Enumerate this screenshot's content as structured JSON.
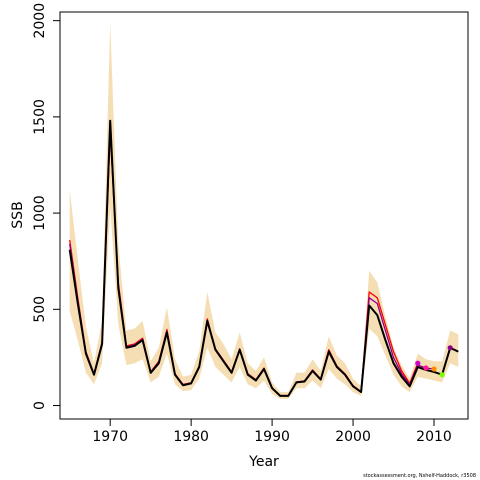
{
  "chart_data": {
    "type": "line",
    "xlabel": "Year",
    "ylabel": "SSB",
    "xlim": [
      1963.8,
      2014.2
    ],
    "ylim": [
      -70,
      2045
    ],
    "xticks": [
      1970,
      1980,
      1990,
      2000,
      2010
    ],
    "yticks": [
      0,
      500,
      1000,
      1500,
      2000
    ],
    "grid": false,
    "caption": "stockassessment.org, Nshelf-Haddock, r3508",
    "colors": {
      "band": "#f5deb3",
      "main": "#000000",
      "retro_red": "#ff0000",
      "retro_purple": "#8b008b",
      "points": [
        "#cd00cd",
        "#ff1493",
        "#ff8c00",
        "#7cfc00",
        "#8b008b"
      ]
    },
    "series": [
      {
        "id": "estimate",
        "x": [
          1965,
          1966,
          1967,
          1968,
          1969,
          1970,
          1971,
          1972,
          1973,
          1974,
          1975,
          1976,
          1977,
          1978,
          1979,
          1980,
          1981,
          1982,
          1983,
          1984,
          1985,
          1986,
          1987,
          1988,
          1989,
          1990,
          1991,
          1992,
          1993,
          1994,
          1995,
          1996,
          1997,
          1998,
          1999,
          2000,
          2001,
          2002,
          2003,
          2004,
          2005,
          2006,
          2007,
          2008,
          2009,
          2010,
          2011,
          2012,
          2013
        ],
        "y": [
          810,
          530,
          270,
          160,
          320,
          1480,
          610,
          300,
          310,
          340,
          170,
          220,
          380,
          160,
          105,
          115,
          200,
          440,
          290,
          230,
          170,
          290,
          160,
          130,
          190,
          90,
          50,
          50,
          120,
          125,
          180,
          135,
          280,
          200,
          160,
          100,
          70,
          520,
          470,
          340,
          220,
          150,
          100,
          200,
          185,
          175,
          160,
          300,
          280
        ],
        "upper": [
          1120,
          760,
          410,
          220,
          440,
          1990,
          840,
          390,
          400,
          440,
          230,
          300,
          510,
          240,
          150,
          160,
          280,
          590,
          380,
          320,
          240,
          380,
          220,
          180,
          250,
          120,
          70,
          70,
          170,
          170,
          240,
          180,
          360,
          260,
          220,
          140,
          100,
          700,
          640,
          460,
          300,
          210,
          140,
          270,
          240,
          230,
          230,
          390,
          370
        ],
        "lower": [
          490,
          340,
          170,
          110,
          220,
          1030,
          420,
          210,
          220,
          240,
          120,
          150,
          270,
          110,
          75,
          80,
          140,
          300,
          200,
          160,
          120,
          200,
          110,
          90,
          130,
          60,
          35,
          35,
          90,
          90,
          130,
          90,
          190,
          140,
          110,
          70,
          50,
          400,
          360,
          260,
          160,
          100,
          70,
          150,
          140,
          130,
          120,
          220,
          200
        ]
      },
      {
        "id": "retro-1",
        "x": [
          1965,
          1966,
          1967,
          1968,
          1969,
          1970,
          1971,
          1972,
          1973,
          1974,
          1975,
          1976,
          1977,
          1978,
          1979,
          1980,
          1981,
          1982,
          1983,
          1984,
          1985,
          1986,
          1987,
          1988,
          1989,
          1990,
          1991,
          1992,
          1993,
          1994,
          1995,
          1996,
          1997,
          1998,
          1999,
          2000,
          2001,
          2002,
          2003,
          2004,
          2005,
          2006,
          2007,
          2008
        ],
        "y": [
          860,
          560,
          280,
          165,
          330,
          1420,
          640,
          310,
          320,
          350,
          175,
          230,
          395,
          165,
          110,
          118,
          205,
          450,
          295,
          235,
          175,
          295,
          165,
          135,
          195,
          92,
          52,
          52,
          122,
          128,
          185,
          138,
          290,
          205,
          165,
          104,
          72,
          590,
          560,
          420,
          280,
          180,
          115,
          220
        ]
      },
      {
        "id": "retro-2",
        "x": [
          1965,
          1966,
          1967,
          1968,
          1969,
          1970,
          1971,
          1972,
          1973,
          1974,
          1975,
          1976,
          1977,
          1978,
          1979,
          1980,
          1981,
          1982,
          1983,
          1984,
          1985,
          1986,
          1987,
          1988,
          1989,
          1990,
          1991,
          1992,
          1993,
          1994,
          1995,
          1996,
          1997,
          1998,
          1999,
          2000,
          2001,
          2002,
          2003,
          2004,
          2005,
          2006,
          2007,
          2008,
          2009,
          2010
        ],
        "y": [
          840,
          545,
          275,
          162,
          325,
          1450,
          625,
          305,
          315,
          345,
          172,
          225,
          388,
          162,
          108,
          116,
          202,
          445,
          292,
          232,
          172,
          292,
          162,
          132,
          192,
          91,
          51,
          51,
          121,
          126,
          182,
          136,
          285,
          202,
          162,
          102,
          71,
          560,
          530,
          390,
          250,
          165,
          108,
          210,
          195,
          190
        ]
      }
    ],
    "endpoints": [
      {
        "x": 2008,
        "y": 220,
        "color": "#cd00cd"
      },
      {
        "x": 2009,
        "y": 195,
        "color": "#ff1493"
      },
      {
        "x": 2010,
        "y": 190,
        "color": "#ff8c00"
      },
      {
        "x": 2011,
        "y": 160,
        "color": "#7cfc00"
      },
      {
        "x": 2012,
        "y": 300,
        "color": "#8b008b"
      }
    ]
  }
}
